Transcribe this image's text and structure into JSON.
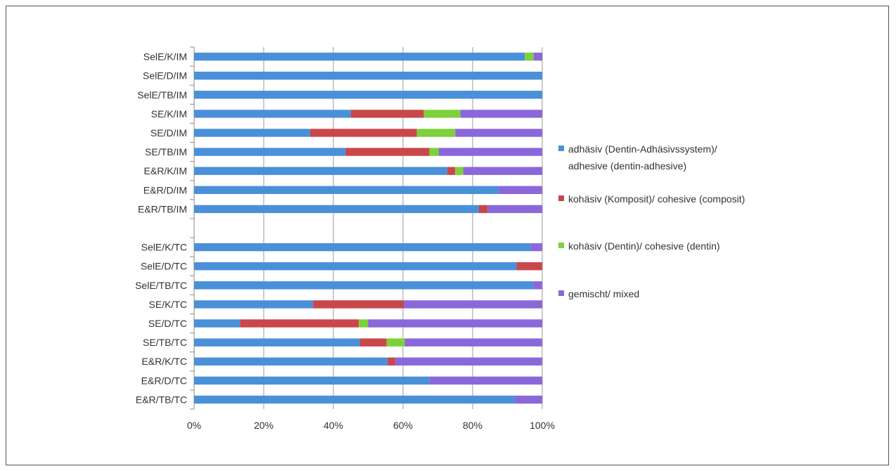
{
  "chart_data": {
    "type": "bar",
    "orientation": "horizontal",
    "stacked": "percent",
    "categories": [
      "SelE/K/IM",
      "SelE/D/IM",
      "SelE/TB/IM",
      "SE/K/IM",
      "SE/D/IM",
      "SE/TB/IM",
      "E&R/K/IM",
      "E&R/D/IM",
      "E&R/TB/IM",
      "",
      "SelE/K/TC",
      "SelE/D/TC",
      "SelE/TB/TC",
      "SE/K/TC",
      "SE/D/TC",
      "SE/TB/TC",
      "E&R/K/TC",
      "E&R/D/TC",
      "E&R/TB/TC"
    ],
    "series": [
      {
        "name": "adhäsiv (Dentin-Adhäsivssystem)/ adhesive (dentin-adhesive)",
        "color": "#4a90d9",
        "values": [
          95,
          100,
          100,
          45,
          33.3,
          43.5,
          72.7,
          87.5,
          81.8,
          0,
          96.7,
          92.6,
          97.5,
          34.2,
          13.2,
          47.6,
          55.6,
          67.6,
          92.1
        ]
      },
      {
        "name": "kohäsiv (Komposit)/ cohesive (composit)",
        "color": "#c9474b",
        "values": [
          0,
          0,
          0,
          21,
          30.7,
          24.1,
          2.3,
          0,
          2.5,
          0,
          0,
          7.4,
          0,
          26,
          34.1,
          7.7,
          2.2,
          0,
          0
        ]
      },
      {
        "name": "kohäsiv (Dentin)/ cohesive (dentin)",
        "color": "#7dd13a",
        "values": [
          2.5,
          0,
          0,
          10.5,
          11,
          2.7,
          2.3,
          0,
          0,
          0,
          0,
          0,
          0,
          0,
          2.7,
          5.2,
          0,
          0,
          0
        ]
      },
      {
        "name": "gemischt/ mixed",
        "color": "#8b68d9",
        "values": [
          2.5,
          0,
          0,
          23.5,
          25,
          29.7,
          22.7,
          12.5,
          15.7,
          0,
          3.3,
          0,
          2.5,
          39.8,
          50,
          39.5,
          42.2,
          32.4,
          7.9
        ]
      }
    ],
    "xlim": [
      0,
      100
    ],
    "x_ticks": [
      "0%",
      "20%",
      "40%",
      "60%",
      "80%",
      "100%"
    ],
    "grid": true,
    "legend_position": "right",
    "title": "",
    "xlabel": "",
    "ylabel": ""
  },
  "legend": {
    "items": [
      {
        "lines": [
          "adhäsiv (Dentin-Adhäsivssystem)/",
          "adhesive (dentin-adhesive)"
        ],
        "color": "#4a90d9"
      },
      {
        "lines": [
          "kohäsiv (Komposit)/ cohesive (composit)"
        ],
        "color": "#c9474b"
      },
      {
        "lines": [
          "kohäsiv (Dentin)/ cohesive (dentin)"
        ],
        "color": "#7dd13a"
      },
      {
        "lines": [
          "gemischt/ mixed"
        ],
        "color": "#8b68d9"
      }
    ]
  }
}
